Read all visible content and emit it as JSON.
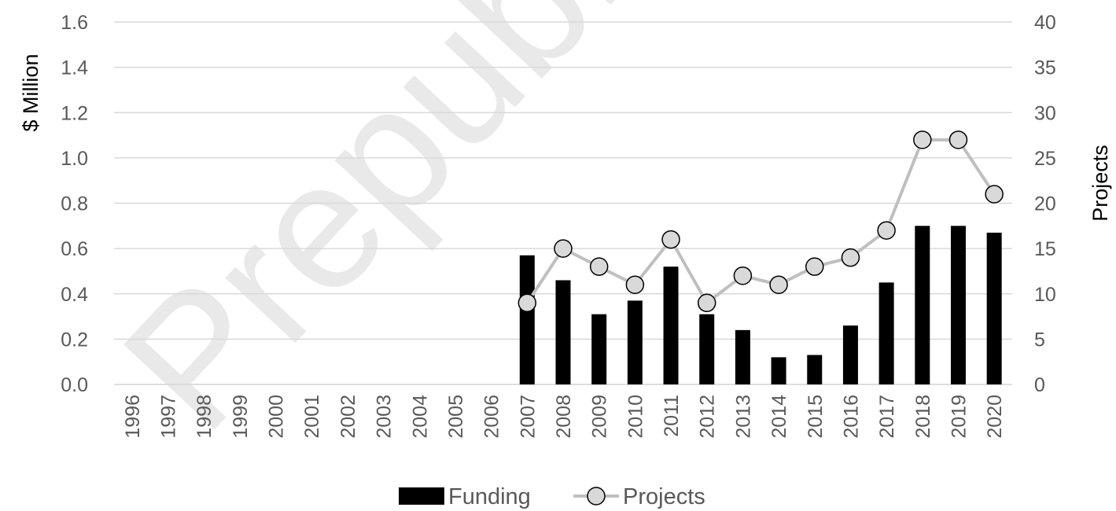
{
  "watermark": "Prepublication",
  "chart_data": {
    "type": "bar",
    "categories": [
      "1996",
      "1997",
      "1998",
      "1999",
      "2000",
      "2001",
      "2002",
      "2003",
      "2004",
      "2005",
      "2006",
      "2007",
      "2008",
      "2009",
      "2010",
      "2011",
      "2012",
      "2013",
      "2014",
      "2015",
      "2016",
      "2017",
      "2018",
      "2019",
      "2020"
    ],
    "series": [
      {
        "name": "Funding",
        "type": "bar",
        "axis": "left",
        "color": "#000000",
        "values": [
          null,
          null,
          null,
          null,
          null,
          null,
          null,
          null,
          null,
          null,
          null,
          0.57,
          0.46,
          0.31,
          0.37,
          0.52,
          0.31,
          0.24,
          0.12,
          0.13,
          0.26,
          0.45,
          0.7,
          0.7,
          0.67
        ]
      },
      {
        "name": "Projects",
        "type": "line",
        "axis": "right",
        "color": "#bfbfbf",
        "marker_fill": "#d9d9d9",
        "values": [
          null,
          null,
          null,
          null,
          null,
          null,
          null,
          null,
          null,
          null,
          null,
          9,
          15,
          13,
          11,
          16,
          9,
          12,
          11,
          13,
          14,
          17,
          27,
          27,
          21
        ]
      }
    ],
    "ylabel": "$ Million",
    "y2label": "Projects",
    "ylim": [
      0,
      1.6
    ],
    "y2lim": [
      0,
      40
    ],
    "yticks": [
      "0.0",
      "0.2",
      "0.4",
      "0.6",
      "0.8",
      "1.0",
      "1.2",
      "1.4",
      "1.6"
    ],
    "y2ticks": [
      "0",
      "5",
      "10",
      "15",
      "20",
      "25",
      "30",
      "35",
      "40"
    ],
    "grid": true,
    "legend_position": "bottom"
  }
}
